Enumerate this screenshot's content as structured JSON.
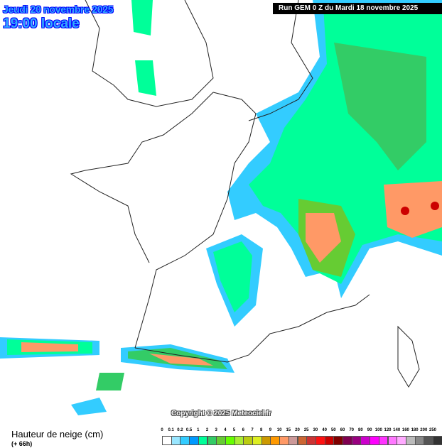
{
  "header": {
    "date": "Jeudi 20 novembre 2025",
    "time": "19:00 locale",
    "run": "Run GEM 0 Z du Mardi 18 novembre 2025"
  },
  "copyright": "Copyright © 2025 Meteociel.fr",
  "footer": {
    "title": "Hauteur de neige (cm)",
    "lead": "(+ 66h)"
  },
  "legend": {
    "labels": [
      "0",
      "0.1",
      "0.2",
      "0.5",
      "1",
      "2",
      "3",
      "4",
      "5",
      "6",
      "7",
      "8",
      "9",
      "10",
      "15",
      "20",
      "25",
      "30",
      "40",
      "50",
      "60",
      "70",
      "80",
      "90",
      "100",
      "120",
      "140",
      "160",
      "180",
      "200",
      "250"
    ],
    "colors": [
      "#ffffff",
      "#99e6ff",
      "#33ccff",
      "#0099ff",
      "#00ff99",
      "#33cc66",
      "#66cc33",
      "#66ff00",
      "#aaee33",
      "#bbcc11",
      "#ddee22",
      "#cc9900",
      "#ff9900",
      "#ff9966",
      "#cc9999",
      "#cc6633",
      "#cc3333",
      "#ff1111",
      "#cc0000",
      "#800000",
      "#800050",
      "#990080",
      "#cc00cc",
      "#ff00ff",
      "#ff33ff",
      "#ff77ff",
      "#ffaaff",
      "#bbbbbb",
      "#888888",
      "#555555",
      "#333333"
    ]
  }
}
